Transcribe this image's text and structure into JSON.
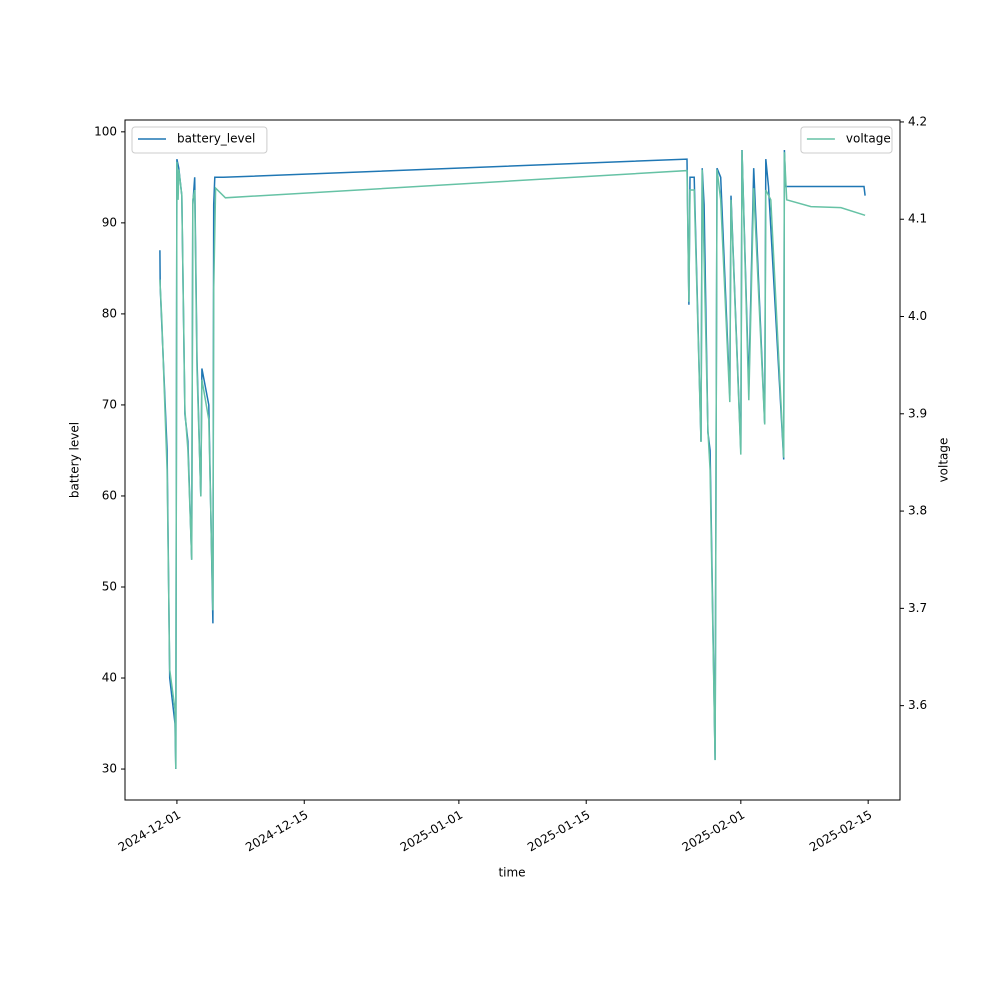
{
  "chart_data": {
    "type": "line",
    "xlabel": "time",
    "ylabel": "battery level",
    "y2label": "voltage",
    "xlim": [
      "2024-11-25T07:00",
      "2025-02-18T12:00"
    ],
    "xticks": [
      "2024-12-01",
      "2024-12-15",
      "2025-01-01",
      "2025-01-15",
      "2025-02-01",
      "2025-02-15"
    ],
    "ylim": [
      26.6,
      101.3
    ],
    "yticks": [
      30,
      40,
      50,
      60,
      70,
      80,
      90,
      100
    ],
    "y2lim": [
      3.503,
      4.202
    ],
    "y2ticks": [
      3.6,
      3.7,
      3.8,
      3.9,
      {
        "value": 4.0,
        "label": "4.0"
      },
      4.1,
      4.2
    ],
    "series": [
      {
        "name": "battery_level",
        "color": "#1f77b4",
        "legend": "upper left",
        "x": [
          "2024-11-29T03:00",
          "2024-11-29T04:00",
          "2024-11-29T22:00",
          "2024-11-30T05:00",
          "2024-11-30T19:00",
          "2024-11-30T21:00",
          "2024-12-01T00:00",
          "2024-12-01T05:00",
          "2024-12-01T13:00",
          "2024-12-01T21:00",
          "2024-12-02T05:00",
          "2024-12-02T15:00",
          "2024-12-02T18:00",
          "2024-12-02T23:00",
          "2024-12-03T05:00",
          "2024-12-03T15:00",
          "2024-12-03T18:00",
          "2024-12-04T12:00",
          "2024-12-04T23:00",
          "2024-12-05T01:00",
          "2024-12-05T04:00",
          "2024-12-06T03:00",
          "2025-01-26T02:00",
          "2025-01-26T07:00",
          "2025-01-26T10:00",
          "2025-01-26T21:00",
          "2025-01-27T15:00",
          "2025-01-27T18:00",
          "2025-01-27T23:00",
          "2025-01-28T09:00",
          "2025-01-28T15:00",
          "2025-01-29T04:00",
          "2025-01-29T09:00",
          "2025-01-29T19:00",
          "2025-01-30T19:00",
          "2025-01-30T22:00",
          "2025-02-01T00:00",
          "2025-02-01T03:00",
          "2025-02-01T21:00",
          "2025-02-02T10:00",
          "2025-02-03T15:00",
          "2025-02-03T18:00",
          "2025-02-04T01:00",
          "2025-02-05T17:00",
          "2025-02-05T19:00",
          "2025-02-05T22:00",
          "2025-02-14T13:00",
          "2025-02-14T16:00"
        ],
        "values": [
          87,
          83,
          65,
          40,
          35,
          30,
          97,
          96,
          93,
          69,
          66,
          53,
          92,
          95,
          75,
          60,
          74,
          70,
          46,
          92,
          95,
          95,
          97,
          81,
          95,
          95,
          66,
          96,
          92,
          67,
          65,
          31,
          96,
          95,
          71,
          93,
          65,
          98,
          72,
          96,
          68,
          97,
          94,
          64,
          98,
          94,
          94,
          93
        ]
      },
      {
        "name": "voltage",
        "color": "#66c2a5",
        "axis": "y2",
        "legend": "upper right",
        "x": [
          "2024-11-29T03:00",
          "2024-11-29T08:00",
          "2024-11-29T22:00",
          "2024-11-30T05:00",
          "2024-11-30T19:00",
          "2024-11-30T21:00",
          "2024-12-01T00:00",
          "2024-12-01T03:00",
          "2024-12-01T05:00",
          "2024-12-01T13:00",
          "2024-12-01T21:00",
          "2024-12-02T05:00",
          "2024-12-02T15:00",
          "2024-12-02T18:00",
          "2024-12-02T23:00",
          "2024-12-03T05:00",
          "2024-12-03T15:00",
          "2024-12-03T18:00",
          "2024-12-04T12:00",
          "2024-12-04T23:00",
          "2024-12-05T01:00",
          "2024-12-05T06:00",
          "2024-12-06T08:00",
          "2025-01-26T02:00",
          "2025-01-26T07:00",
          "2025-01-26T10:00",
          "2025-01-26T21:00",
          "2025-01-27T15:00",
          "2025-01-27T18:00",
          "2025-01-28T09:00",
          "2025-01-28T15:00",
          "2025-01-29T04:00",
          "2025-01-29T09:00",
          "2025-01-29T19:00",
          "2025-01-30T19:00",
          "2025-01-30T22:00",
          "2025-02-01T00:00",
          "2025-02-01T03:00",
          "2025-02-01T21:00",
          "2025-02-02T10:00",
          "2025-02-03T15:00",
          "2025-02-03T18:00",
          "2025-02-04T07:00",
          "2025-02-05T17:00",
          "2025-02-05T19:00",
          "2025-02-06T01:00",
          "2025-02-08T17:00",
          "2025-02-12T00:00",
          "2025-02-14T16:00"
        ],
        "values": [
          4.038,
          3.997,
          3.842,
          3.637,
          3.596,
          3.535,
          4.159,
          4.12,
          4.151,
          4.125,
          3.904,
          3.863,
          3.75,
          4.12,
          4.13,
          3.945,
          3.815,
          3.935,
          3.894,
          3.698,
          4.027,
          4.132,
          4.122,
          4.15,
          4.015,
          4.13,
          4.13,
          3.871,
          4.151,
          3.883,
          3.842,
          3.544,
          4.151,
          4.12,
          3.912,
          4.12,
          3.858,
          4.171,
          3.914,
          4.132,
          3.889,
          4.13,
          4.12,
          3.855,
          4.169,
          4.12,
          4.113,
          4.112,
          4.104
        ]
      }
    ]
  }
}
